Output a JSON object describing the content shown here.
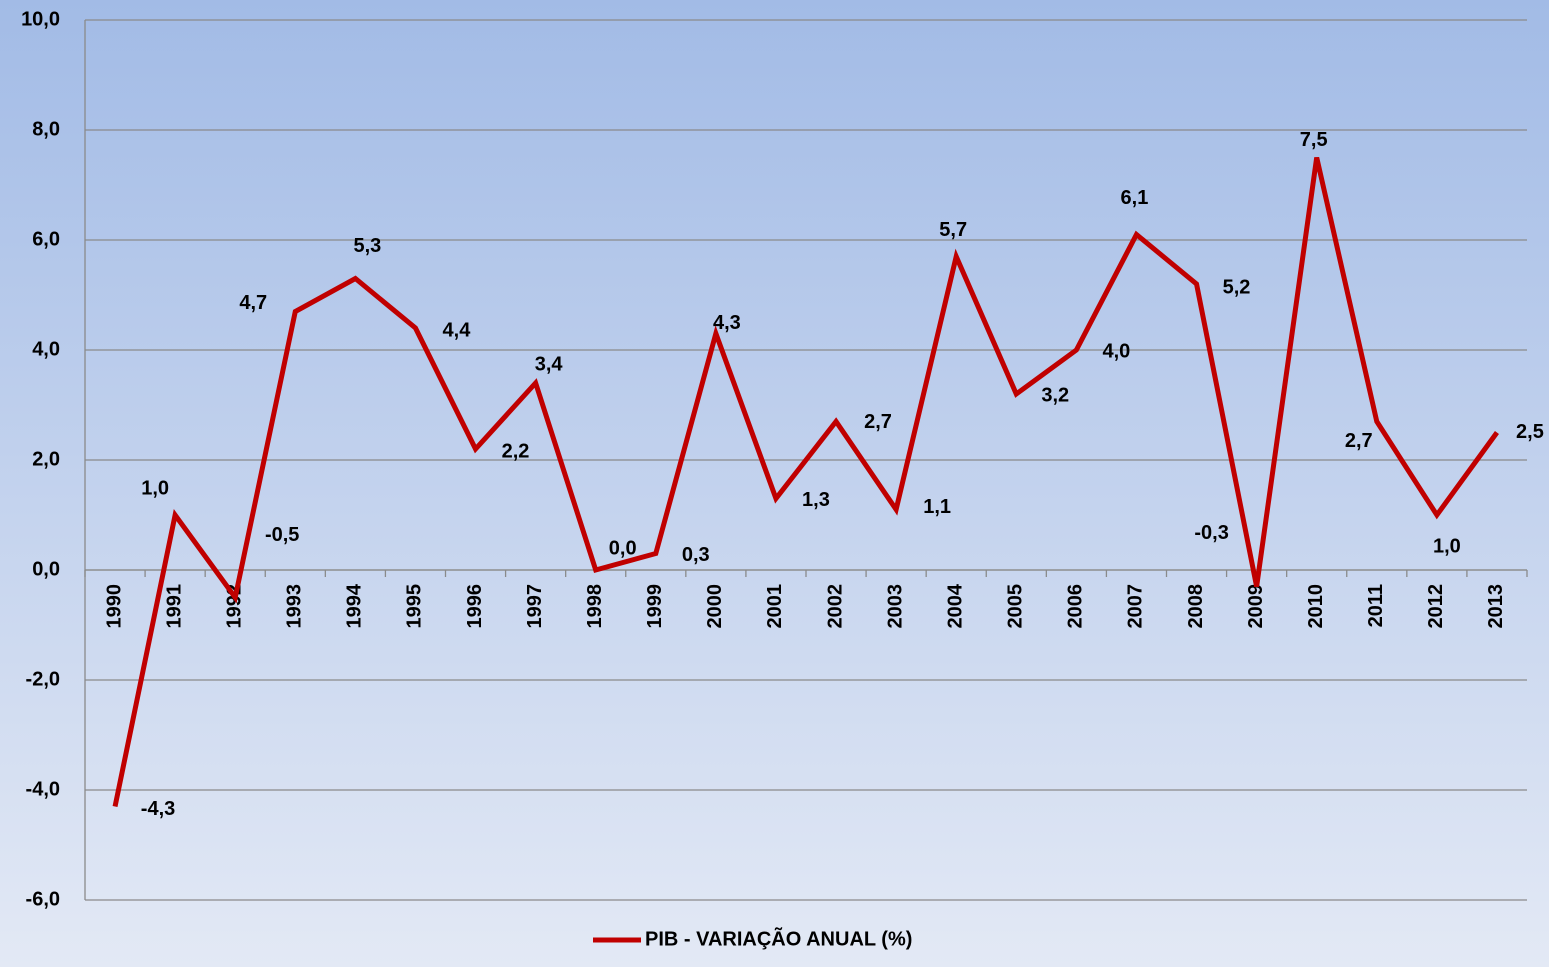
{
  "chart_data": {
    "type": "line",
    "categories": [
      "1990",
      "1991",
      "1992",
      "1993",
      "1994",
      "1995",
      "1996",
      "1997",
      "1998",
      "1999",
      "2000",
      "2001",
      "2002",
      "2003",
      "2004",
      "2005",
      "2006",
      "2007",
      "2008",
      "2009",
      "2010",
      "2011",
      "2012",
      "2013"
    ],
    "series": [
      {
        "name": "PIB - VARIAÇÃO ANUAL (%)",
        "color": "#c00000",
        "values": [
          -4.3,
          1.0,
          -0.5,
          4.7,
          5.3,
          4.4,
          2.2,
          3.4,
          0.0,
          0.3,
          4.3,
          1.3,
          2.7,
          1.1,
          5.7,
          3.2,
          4.0,
          6.1,
          5.2,
          -0.3,
          7.5,
          2.7,
          1.0,
          2.5
        ],
        "value_labels": [
          "-4,3",
          "1,0",
          "-0,5",
          "4,7",
          "5,3",
          "4,4",
          "2,2",
          "3,4",
          "0,0",
          "0,3",
          "4,3",
          "1,3",
          "2,7",
          "1,1",
          "5,7",
          "3,2",
          "4,0",
          "6,1",
          "5,2",
          "-0,3",
          "7,5",
          "2,7",
          "1,0",
          "2,5"
        ]
      }
    ],
    "ylim": [
      -6,
      10
    ],
    "yticks": [
      {
        "value": -6,
        "label": "-6,0"
      },
      {
        "value": -4,
        "label": "-4,0"
      },
      {
        "value": -2,
        "label": "-2,0"
      },
      {
        "value": 0,
        "label": "0,0"
      },
      {
        "value": 2,
        "label": "2,0"
      },
      {
        "value": 4,
        "label": "4,0"
      },
      {
        "value": 6,
        "label": "6,0"
      },
      {
        "value": 8,
        "label": "8,0"
      },
      {
        "value": 10,
        "label": "10,0"
      }
    ],
    "grid": true,
    "legend": "bottom"
  }
}
